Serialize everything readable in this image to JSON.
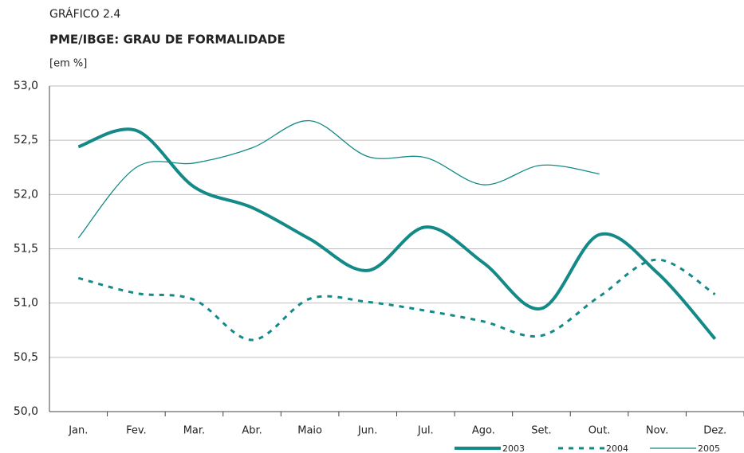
{
  "chart_data": {
    "type": "line",
    "kicker": "GRÁFICO 2.4",
    "title": "PME/IBGE: GRAU DE FORMALIDADE",
    "subtitle": "[em %]",
    "categories": [
      "Jan.",
      "Fev.",
      "Mar.",
      "Abr.",
      "Maio",
      "Jun.",
      "Jul.",
      "Ago.",
      "Set.",
      "Out.",
      "Nov.",
      "Dez."
    ],
    "series": [
      {
        "name": "2003",
        "color": "#138a87",
        "width": 4,
        "dash": "none",
        "values": [
          52.44,
          52.59,
          52.07,
          51.88,
          51.59,
          51.3,
          51.7,
          51.37,
          50.95,
          51.63,
          51.28,
          50.67
        ]
      },
      {
        "name": "2004",
        "color": "#138a87",
        "width": 3,
        "dash": "6 7",
        "values": [
          51.23,
          51.09,
          51.03,
          50.66,
          51.04,
          51.01,
          50.93,
          50.83,
          50.7,
          51.06,
          51.4,
          51.08
        ]
      },
      {
        "name": "2005",
        "color": "#138a87",
        "width": 1.3,
        "dash": "none",
        "values": [
          51.6,
          52.25,
          52.29,
          52.43,
          52.68,
          52.35,
          52.34,
          52.09,
          52.27,
          52.19,
          null,
          null
        ]
      }
    ],
    "ylim": [
      50,
      53
    ],
    "yticks": [
      {
        "value": 50,
        "label": "50,0"
      },
      {
        "value": 50.5,
        "label": "50,5"
      },
      {
        "value": 51,
        "label": "51,0"
      },
      {
        "value": 51.5,
        "label": "51,5"
      },
      {
        "value": 52,
        "label": "52,0"
      },
      {
        "value": 52.5,
        "label": "52,5"
      },
      {
        "value": 53,
        "label": "53,0"
      }
    ],
    "grid": true
  }
}
